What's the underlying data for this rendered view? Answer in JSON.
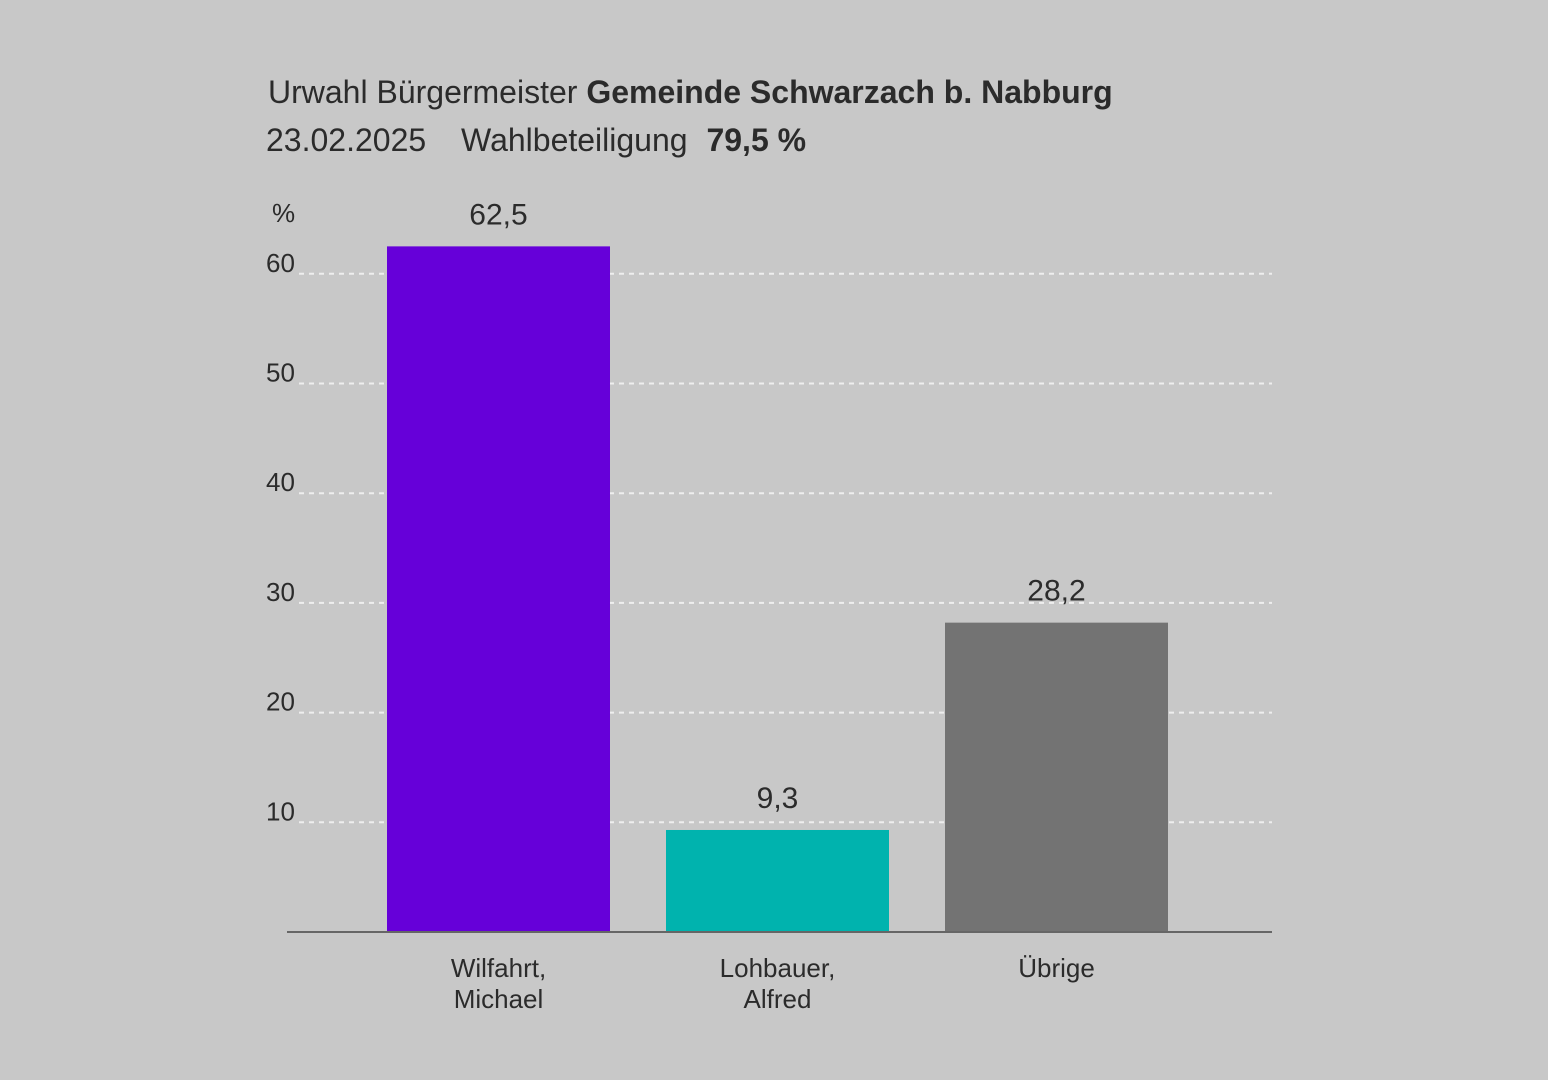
{
  "header": {
    "title_prefix": "Urwahl Bürgermeister",
    "title_bold": "Gemeinde Schwarzach b. Nabburg",
    "date": "23.02.2025",
    "turnout_label": "Wahlbeteiligung",
    "turnout_value": "79,5 %"
  },
  "chart_data": {
    "type": "bar",
    "title": "Urwahl Bürgermeister Gemeinde Schwarzach b. Nabburg",
    "subtitle": "23.02.2025 Wahlbeteiligung 79,5 %",
    "ylabel": "%",
    "ylim": [
      0,
      70
    ],
    "yticks": [
      10,
      20,
      30,
      40,
      50,
      60
    ],
    "ytick_labels": [
      "10",
      "20",
      "30",
      "40",
      "50",
      "60"
    ],
    "grid": true,
    "categories": [
      [
        "Wilfahrt,",
        "Michael"
      ],
      [
        "Lohbauer,",
        "Alfred"
      ],
      [
        "Übrige"
      ]
    ],
    "values": [
      62.5,
      9.3,
      28.2
    ],
    "value_labels": [
      "62,5",
      "9,3",
      "28,2"
    ],
    "colors": [
      "#6600d9",
      "#00b3ae",
      "#737373"
    ]
  }
}
